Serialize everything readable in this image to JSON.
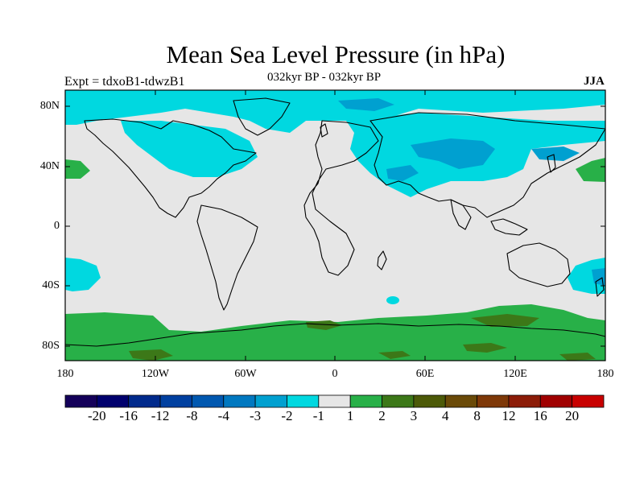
{
  "title": "Mean Sea Level Pressure (in hPa)",
  "left_string": "Expt = tdxoB1-tdwzB1",
  "center_string": "032kyr BP - 032kyr BP",
  "right_string": "JJA",
  "y_ticks": [
    "80N",
    "40N",
    "0",
    "40S",
    "80S"
  ],
  "x_ticks": [
    "180",
    "120W",
    "60W",
    "0",
    "60E",
    "120E",
    "180"
  ],
  "colorbar": {
    "labels": [
      "-20",
      "-16",
      "-12",
      "-8",
      "-4",
      "-3",
      "-2",
      "-1",
      "1",
      "2",
      "3",
      "4",
      "8",
      "12",
      "16",
      "20"
    ],
    "colors": [
      "#14005a",
      "#00006e",
      "#002a8c",
      "#0040a0",
      "#0058b0",
      "#0078c0",
      "#00a0d0",
      "#00d8e0",
      "#e6e6e6",
      "#28b048",
      "#3c7818",
      "#4c5a08",
      "#6a4a08",
      "#7e3808",
      "#8c1c08",
      "#a00000",
      "#c80000"
    ]
  },
  "colors": {
    "neutral": "#e6e6e6",
    "neg1": "#00d8e0",
    "neg2": "#00a0d0",
    "neg3": "#0078c0",
    "pos1": "#28b048",
    "pos2": "#3c7818"
  }
}
